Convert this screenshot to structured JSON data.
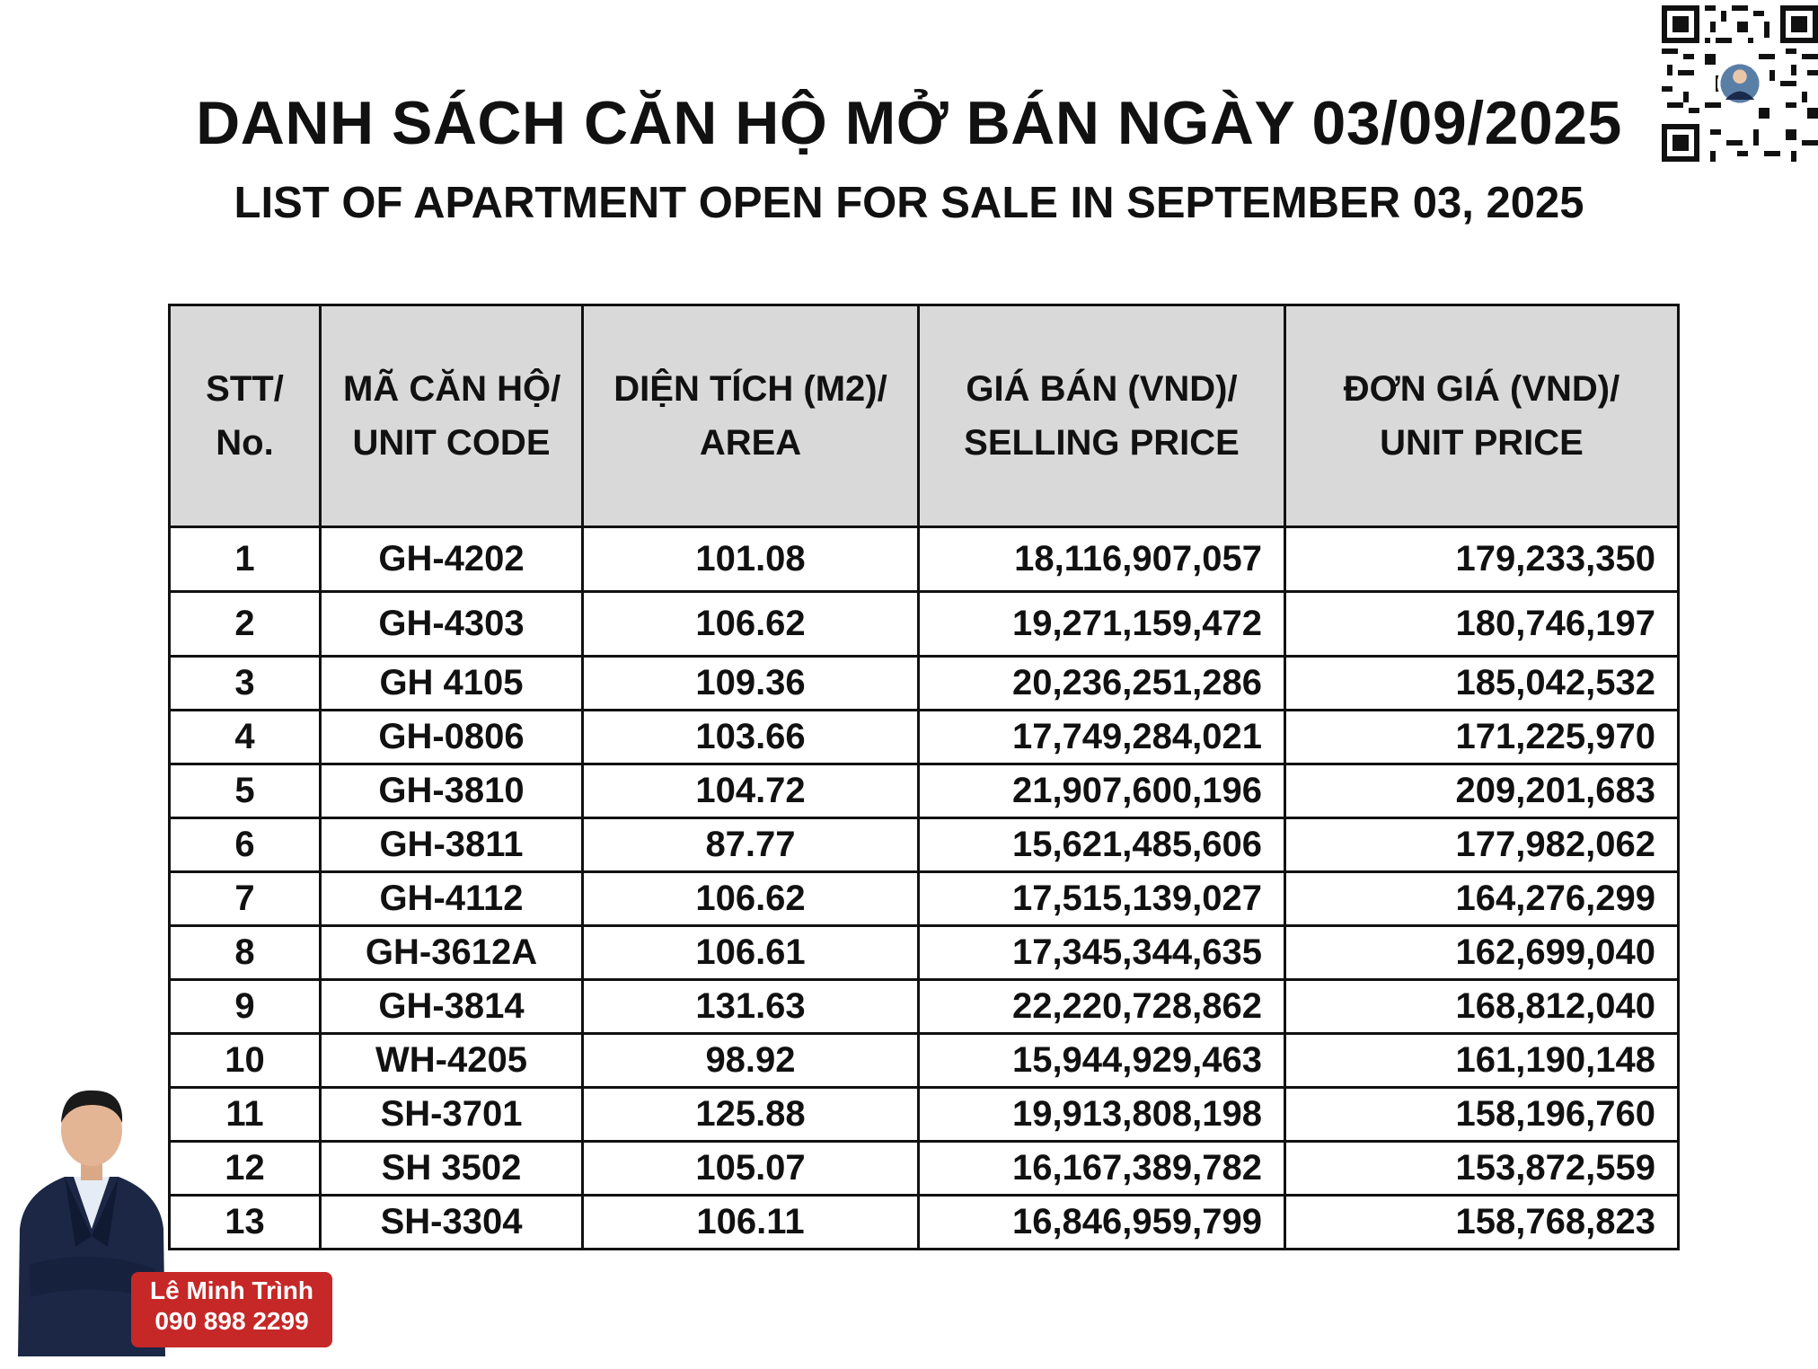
{
  "title_vi": "DANH SÁCH CĂN HỘ MỞ BÁN NGÀY 03/09/2025",
  "title_en": "LIST OF APARTMENT OPEN FOR SALE  IN SEPTEMBER 03, 2025",
  "table": {
    "headers": [
      {
        "line1": "STT/",
        "line2": "No."
      },
      {
        "line1": "MÃ CĂN HỘ/",
        "line2": "UNIT CODE"
      },
      {
        "line1": "DIỆN TÍCH (M2)/",
        "line2": "AREA"
      },
      {
        "line1": "GIÁ BÁN (VND)/",
        "line2": "SELLING  PRICE"
      },
      {
        "line1": "ĐƠN GIÁ (VND)/",
        "line2": "UNIT PRICE"
      }
    ],
    "rows": [
      {
        "no": "1",
        "code": "GH-4202",
        "area": "101.08",
        "price": "18,116,907,057",
        "unit_price": "179,233,350"
      },
      {
        "no": "2",
        "code": "GH-4303",
        "area": "106.62",
        "price": "19,271,159,472",
        "unit_price": "180,746,197"
      },
      {
        "no": "3",
        "code": "GH 4105",
        "area": "109.36",
        "price": "20,236,251,286",
        "unit_price": "185,042,532"
      },
      {
        "no": "4",
        "code": "GH-0806",
        "area": "103.66",
        "price": "17,749,284,021",
        "unit_price": "171,225,970"
      },
      {
        "no": "5",
        "code": "GH-3810",
        "area": "104.72",
        "price": "21,907,600,196",
        "unit_price": "209,201,683"
      },
      {
        "no": "6",
        "code": "GH-3811",
        "area": "87.77",
        "price": "15,621,485,606",
        "unit_price": "177,982,062"
      },
      {
        "no": "7",
        "code": "GH-4112",
        "area": "106.62",
        "price": "17,515,139,027",
        "unit_price": "164,276,299"
      },
      {
        "no": "8",
        "code": "GH-3612A",
        "area": "106.61",
        "price": "17,345,344,635",
        "unit_price": "162,699,040"
      },
      {
        "no": "9",
        "code": "GH-3814",
        "area": "131.63",
        "price": "22,220,728,862",
        "unit_price": "168,812,040"
      },
      {
        "no": "10",
        "code": "WH-4205",
        "area": "98.92",
        "price": "15,944,929,463",
        "unit_price": "161,190,148"
      },
      {
        "no": "11",
        "code": "SH-3701",
        "area": "125.88",
        "price": "19,913,808,198",
        "unit_price": "158,196,760"
      },
      {
        "no": "12",
        "code": "SH 3502",
        "area": "105.07",
        "price": "16,167,389,782",
        "unit_price": "153,872,559"
      },
      {
        "no": "13",
        "code": "SH-3304",
        "area": "106.11",
        "price": "16,846,959,799",
        "unit_price": "158,768,823"
      }
    ]
  },
  "contact": {
    "name": "Lê Minh Trình",
    "phone": "090 898 2299",
    "badge_color": "#c62828"
  },
  "icons": {
    "qr": "qr-code-icon",
    "agent": "agent-portrait"
  }
}
